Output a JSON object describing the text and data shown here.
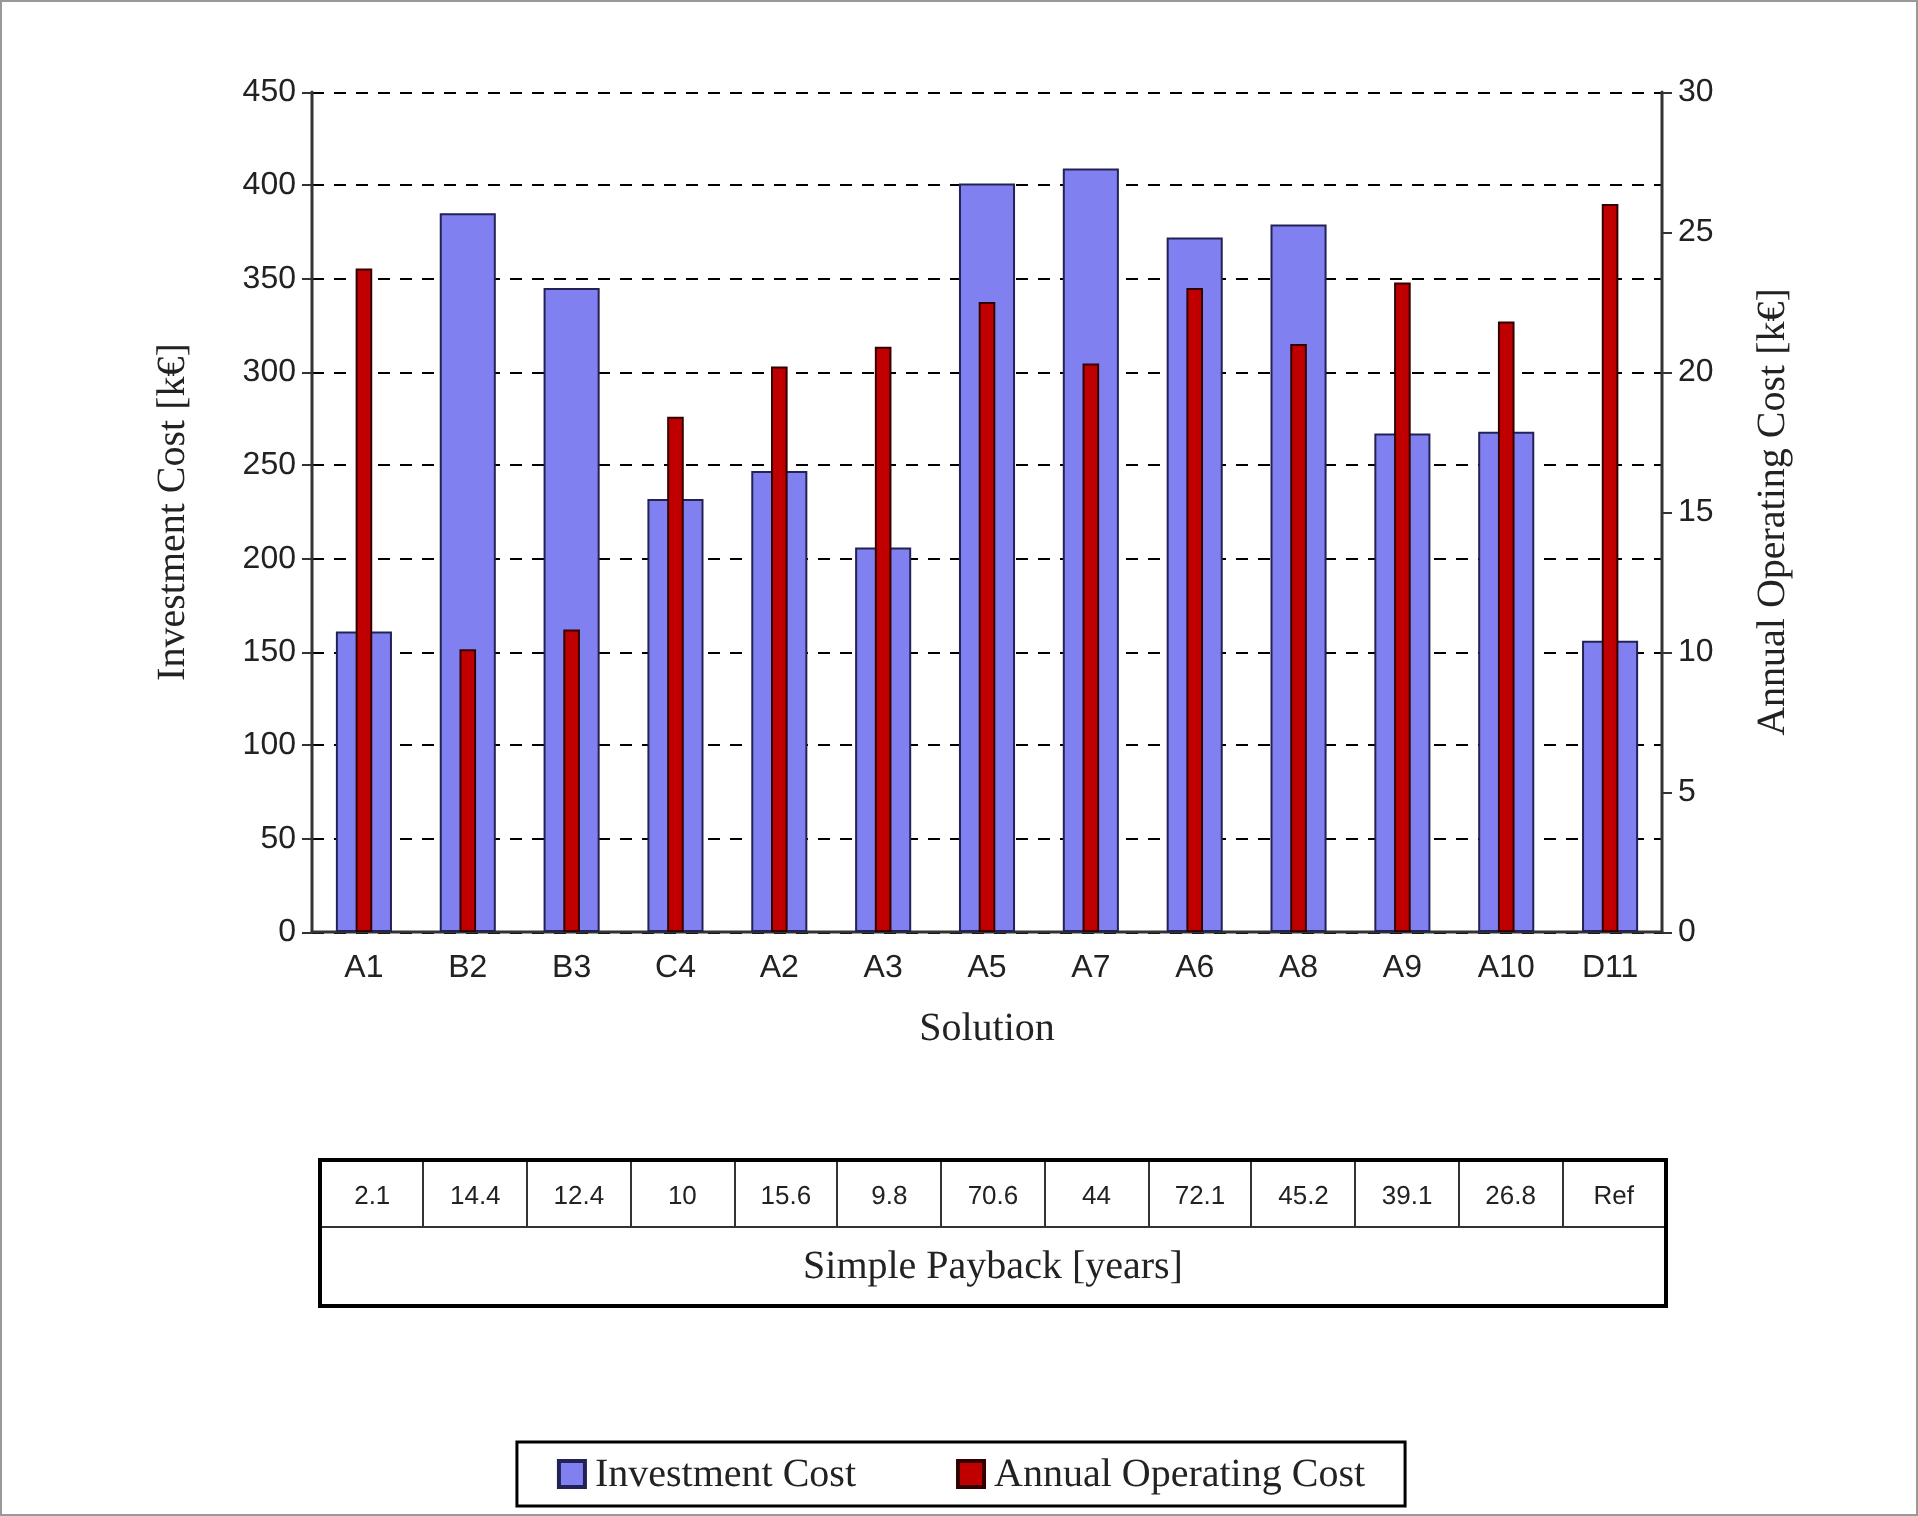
{
  "chart_data": {
    "type": "bar",
    "xlabel": "Solution",
    "ylabel": "Investment Cost [k€]",
    "y2label": "Annual Operating Cost [k€]",
    "categories": [
      "A1",
      "B2",
      "B3",
      "C4",
      "A2",
      "A3",
      "A5",
      "A7",
      "A6",
      "A8",
      "A9",
      "A10",
      "D11"
    ],
    "series": [
      {
        "name": "Investment Cost",
        "color": "#8080f0",
        "values": [
          161,
          385,
          345,
          232,
          247,
          206,
          401,
          409,
          372,
          379,
          267,
          268,
          156
        ]
      },
      {
        "name": "Annual Operating Cost",
        "color": "#c00000",
        "axis": "y2",
        "values": [
          23.7,
          10.1,
          10.8,
          18.4,
          20.2,
          20.9,
          22.5,
          20.3,
          23.0,
          21.0,
          23.2,
          21.8,
          26.0
        ]
      }
    ],
    "ylim": [
      0,
      450
    ],
    "yticks": [
      0,
      50,
      100,
      150,
      200,
      250,
      300,
      350,
      400,
      450
    ],
    "y2lim": [
      0,
      30
    ],
    "y2ticks": [
      0,
      5,
      10,
      15,
      20,
      25,
      30
    ],
    "grid": "y",
    "legend": "bottom",
    "annotations": [
      "2.1",
      "14.4",
      "12.4",
      "10",
      "15.6",
      "9.8",
      "70.6",
      "44",
      "72.1",
      "45.2",
      "39.1",
      "26.8",
      "Ref",
      "Simple Payback [years]"
    ]
  }
}
